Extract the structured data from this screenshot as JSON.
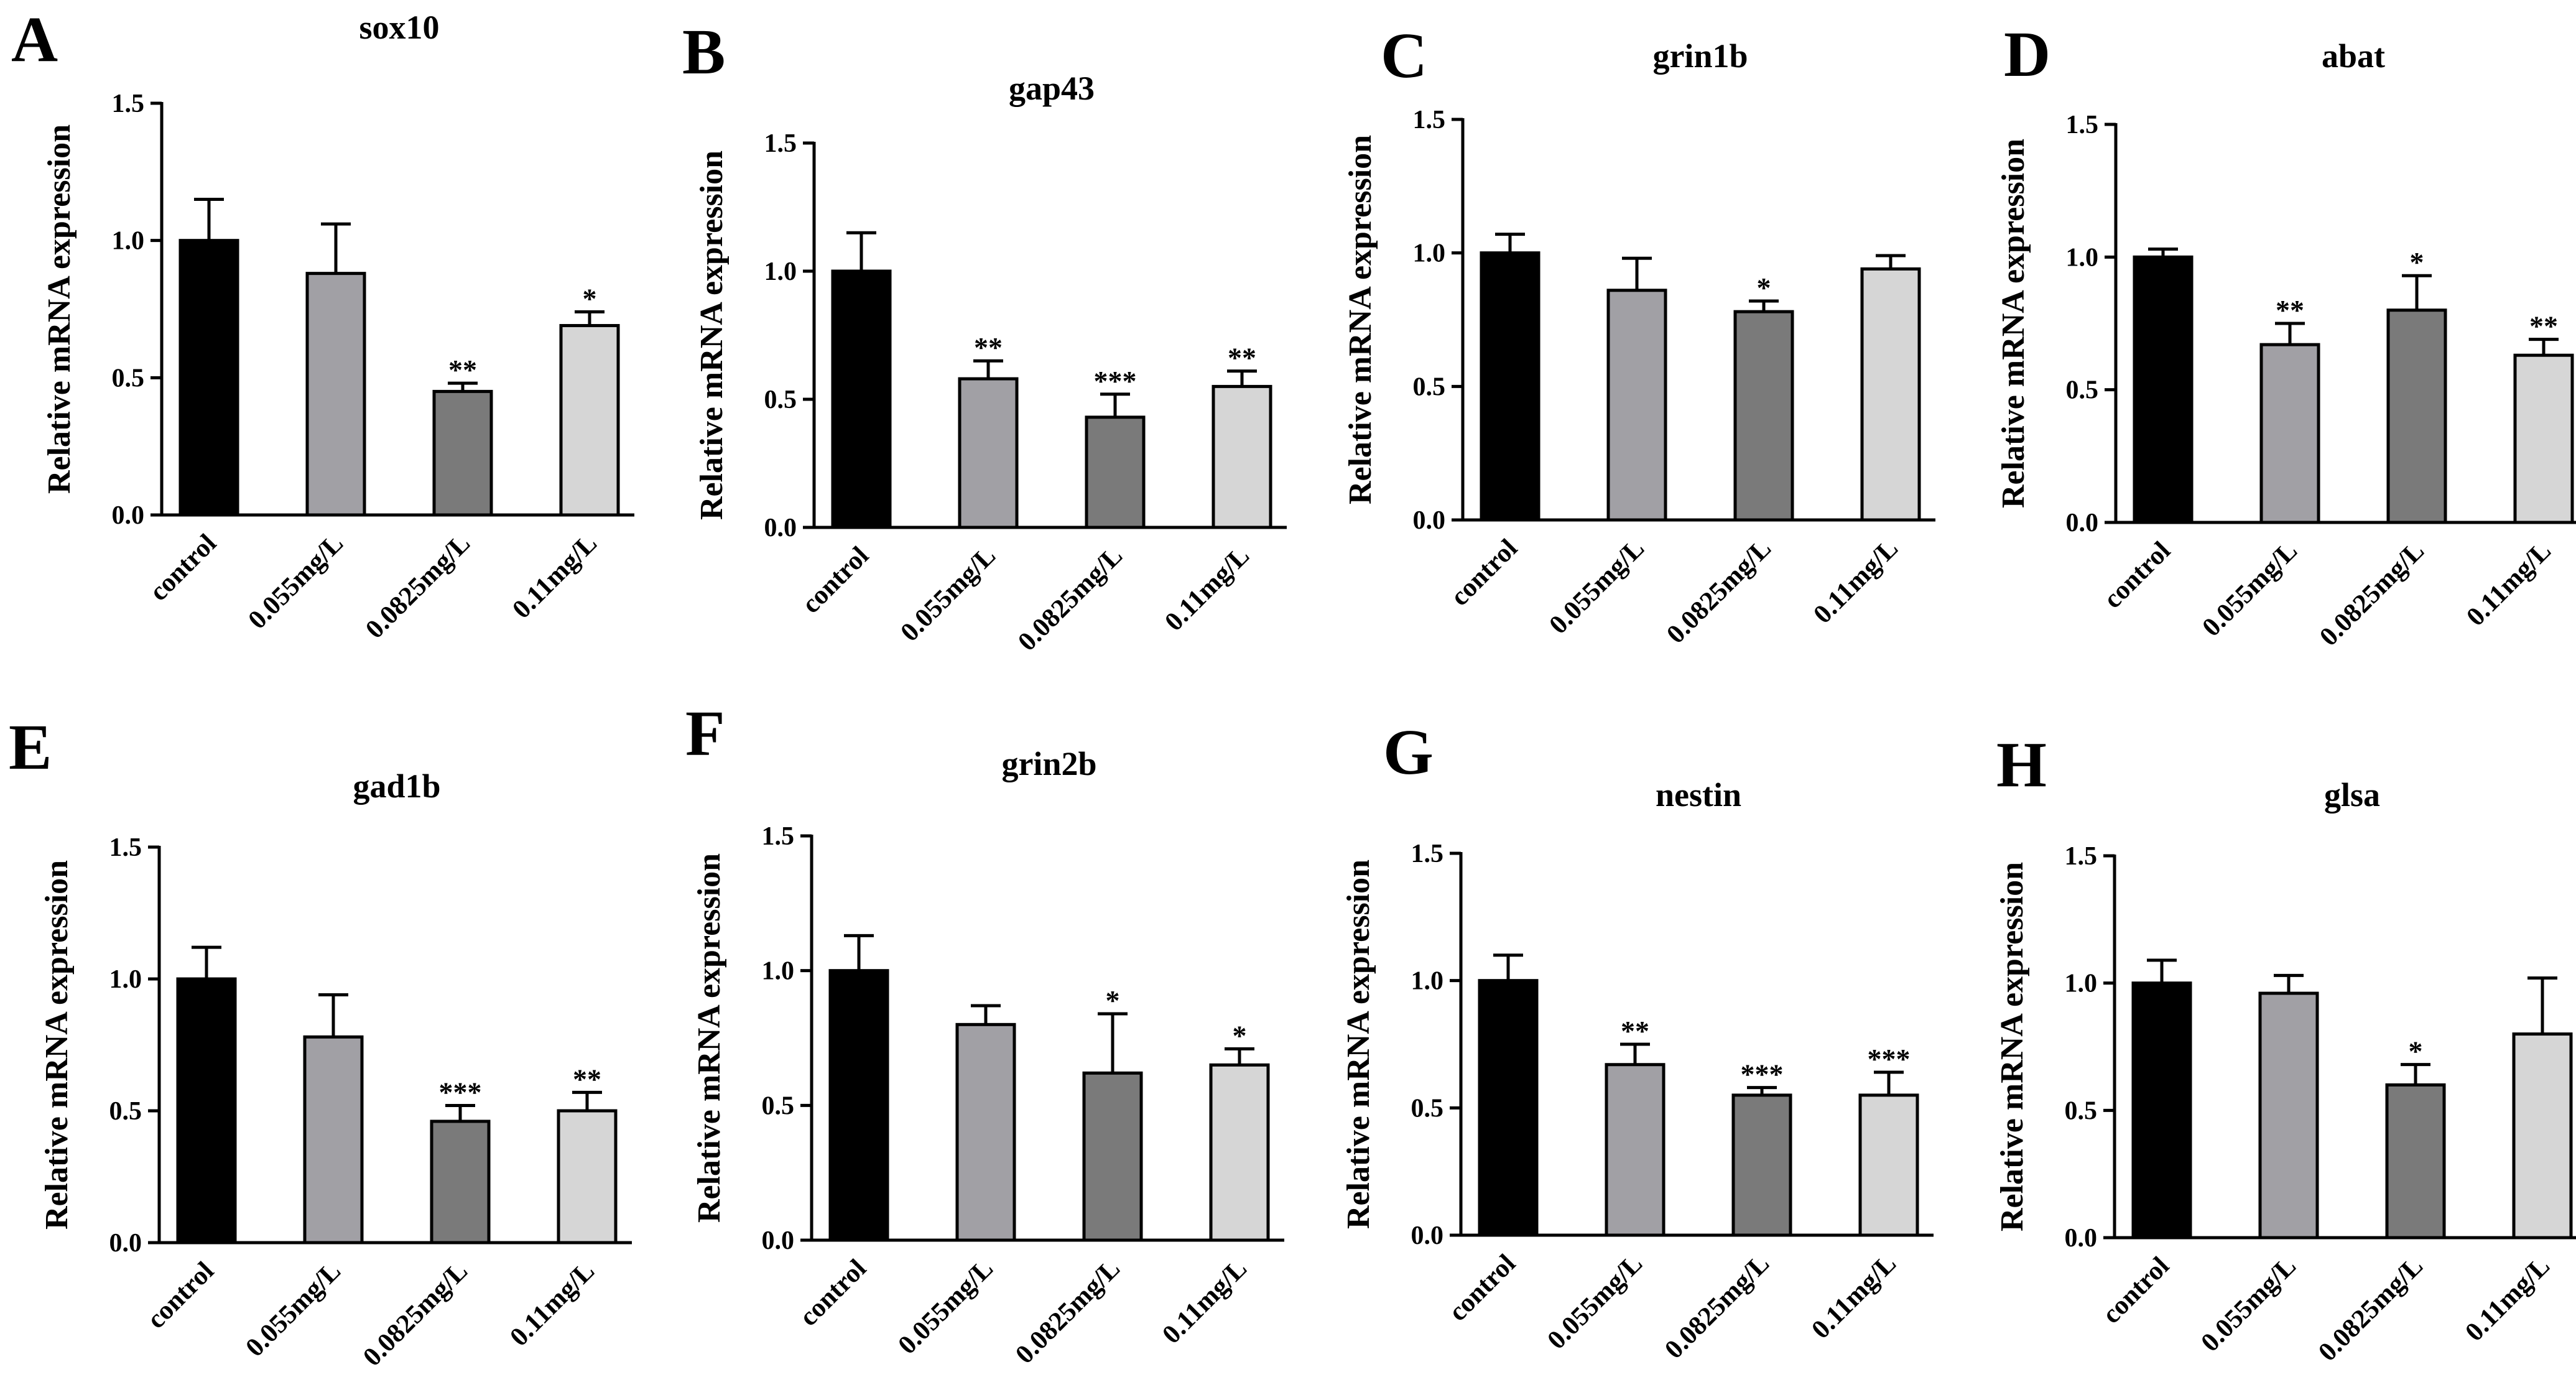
{
  "chart_data": [
    {
      "panel": "A",
      "type": "bar",
      "title": "sox10",
      "xlabel": "",
      "ylabel": "Relative mRNA expression",
      "ylim": [
        0,
        1.5
      ],
      "yticks": [
        "0.0",
        "0.5",
        "1.0",
        "1.5"
      ],
      "categories": [
        "control",
        "0.055mg/L",
        "0.0825mg/L",
        "0.11mg/L"
      ],
      "values": [
        1.0,
        0.88,
        0.45,
        0.69
      ],
      "errors": [
        0.15,
        0.18,
        0.03,
        0.05
      ],
      "significance": [
        "",
        "",
        "**",
        "*"
      ]
    },
    {
      "panel": "B",
      "type": "bar",
      "title": "gap43",
      "xlabel": "",
      "ylabel": "Relative mRNA expression",
      "ylim": [
        0,
        1.5
      ],
      "yticks": [
        "0.0",
        "0.5",
        "1.0",
        "1.5"
      ],
      "categories": [
        "control",
        "0.055mg/L",
        "0.0825mg/L",
        "0.11mg/L"
      ],
      "values": [
        1.0,
        0.58,
        0.43,
        0.55
      ],
      "errors": [
        0.15,
        0.07,
        0.09,
        0.06
      ],
      "significance": [
        "",
        "**",
        "***",
        "**"
      ]
    },
    {
      "panel": "C",
      "type": "bar",
      "title": "grin1b",
      "xlabel": "",
      "ylabel": "Relative mRNA expression",
      "ylim": [
        0,
        1.5
      ],
      "yticks": [
        "0.0",
        "0.5",
        "1.0",
        "1.5"
      ],
      "categories": [
        "control",
        "0.055mg/L",
        "0.0825mg/L",
        "0.11mg/L"
      ],
      "values": [
        1.0,
        0.86,
        0.78,
        0.94
      ],
      "errors": [
        0.07,
        0.12,
        0.04,
        0.05
      ],
      "significance": [
        "",
        "",
        "*",
        ""
      ]
    },
    {
      "panel": "D",
      "type": "bar",
      "title": "abat",
      "xlabel": "",
      "ylabel": "Relative mRNA expression",
      "ylim": [
        0,
        1.5
      ],
      "yticks": [
        "0.0",
        "0.5",
        "1.0",
        "1.5"
      ],
      "categories": [
        "control",
        "0.055mg/L",
        "0.0825mg/L",
        "0.11mg/L"
      ],
      "values": [
        1.0,
        0.67,
        0.8,
        0.63
      ],
      "errors": [
        0.03,
        0.08,
        0.13,
        0.06
      ],
      "significance": [
        "",
        "**",
        "*",
        "**"
      ]
    },
    {
      "panel": "E",
      "type": "bar",
      "title": "gad1b",
      "xlabel": "",
      "ylabel": "Relative mRNA expression",
      "ylim": [
        0,
        1.5
      ],
      "yticks": [
        "0.0",
        "0.5",
        "1.0",
        "1.5"
      ],
      "categories": [
        "control",
        "0.055mg/L",
        "0.0825mg/L",
        "0.11mg/L"
      ],
      "values": [
        1.0,
        0.78,
        0.46,
        0.5
      ],
      "errors": [
        0.12,
        0.16,
        0.06,
        0.07
      ],
      "significance": [
        "",
        "",
        "***",
        "**"
      ]
    },
    {
      "panel": "F",
      "type": "bar",
      "title": "grin2b",
      "xlabel": "",
      "ylabel": "Relative mRNA expression",
      "ylim": [
        0,
        1.5
      ],
      "yticks": [
        "0.0",
        "0.5",
        "1.0",
        "1.5"
      ],
      "categories": [
        "control",
        "0.055mg/L",
        "0.0825mg/L",
        "0.11mg/L"
      ],
      "values": [
        1.0,
        0.8,
        0.62,
        0.65
      ],
      "errors": [
        0.13,
        0.07,
        0.22,
        0.06
      ],
      "significance": [
        "",
        "",
        "*",
        "*"
      ]
    },
    {
      "panel": "G",
      "type": "bar",
      "title": "nestin",
      "xlabel": "",
      "ylabel": "Relative mRNA expression",
      "ylim": [
        0,
        1.5
      ],
      "yticks": [
        "0.0",
        "0.5",
        "1.0",
        "1.5"
      ],
      "categories": [
        "control",
        "0.055mg/L",
        "0.0825mg/L",
        "0.11mg/L"
      ],
      "values": [
        1.0,
        0.67,
        0.55,
        0.55
      ],
      "errors": [
        0.1,
        0.08,
        0.03,
        0.09
      ],
      "significance": [
        "",
        "**",
        "***",
        "***"
      ]
    },
    {
      "panel": "H",
      "type": "bar",
      "title": "glsa",
      "xlabel": "",
      "ylabel": "Relative mRNA expression",
      "ylim": [
        0,
        1.5
      ],
      "yticks": [
        "0.0",
        "0.5",
        "1.0",
        "1.5"
      ],
      "categories": [
        "control",
        "0.055mg/L",
        "0.0825mg/L",
        "0.11mg/L"
      ],
      "values": [
        1.0,
        0.96,
        0.6,
        0.8
      ],
      "errors": [
        0.09,
        0.07,
        0.08,
        0.22
      ],
      "significance": [
        "",
        "",
        "*",
        ""
      ]
    }
  ],
  "colors": {
    "bars": [
      "#000000",
      "#a1a0a5",
      "#7a7a7a",
      "#d6d6d6"
    ],
    "axis": "#000000",
    "background": "#ffffff"
  }
}
